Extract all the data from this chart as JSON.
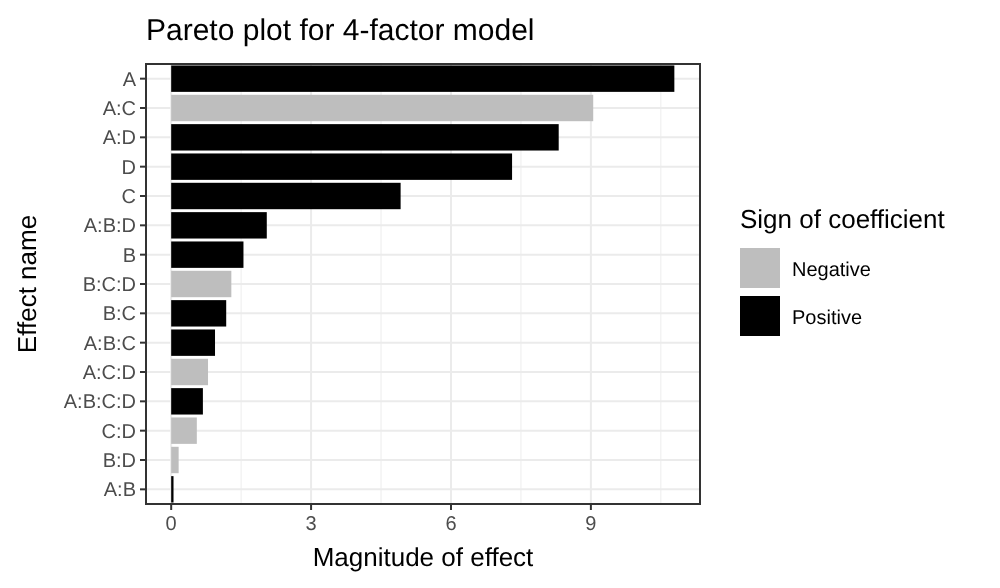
{
  "chart_data": {
    "type": "bar",
    "orientation": "horizontal",
    "title": "Pareto plot for 4-factor model",
    "xlabel": "Magnitude of effect",
    "ylabel": "Effect name",
    "legend_title": "Sign of coefficient",
    "legend": "right",
    "grid": true,
    "categories": [
      "A",
      "A:C",
      "A:D",
      "D",
      "C",
      "A:B:D",
      "B",
      "B:C:D",
      "B:C",
      "A:B:C",
      "A:C:D",
      "A:B:C:D",
      "C:D",
      "B:D",
      "A:B"
    ],
    "xlim": [
      -0.54,
      11.34
    ],
    "xticks": [
      0,
      3,
      6,
      9
    ],
    "series": [
      {
        "name": "Negative",
        "color": "#bebebe",
        "values": [
          null,
          9.05,
          null,
          null,
          null,
          null,
          null,
          1.29,
          null,
          null,
          0.79,
          null,
          0.55,
          0.16,
          null
        ]
      },
      {
        "name": "Positive",
        "color": "#000000",
        "values": [
          10.79,
          null,
          8.31,
          7.31,
          4.92,
          2.05,
          1.55,
          null,
          1.18,
          0.94,
          null,
          0.68,
          null,
          null,
          0.05
        ]
      }
    ]
  }
}
